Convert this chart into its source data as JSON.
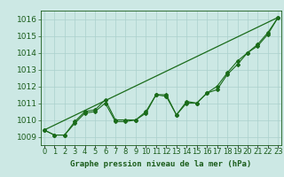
{
  "title": "Graphe pression niveau de la mer (hPa)",
  "ylim": [
    1008.5,
    1016.5
  ],
  "yticks": [
    1009,
    1010,
    1011,
    1012,
    1013,
    1014,
    1015,
    1016
  ],
  "xticks": [
    0,
    1,
    2,
    3,
    4,
    5,
    6,
    7,
    8,
    9,
    10,
    11,
    12,
    13,
    14,
    15,
    16,
    17,
    18,
    19,
    20,
    21,
    22,
    23
  ],
  "bg_color": "#cce8e4",
  "grid_color": "#aad0cc",
  "line_color": "#1a6b1a",
  "marker_color": "#1a6b1a",
  "line1": [
    1009.4,
    1009.1,
    1009.1,
    1009.9,
    1010.5,
    1010.6,
    1011.2,
    1010.0,
    1010.0,
    1010.0,
    1010.4,
    1011.5,
    1011.5,
    1010.3,
    1011.1,
    1011.0,
    1011.6,
    1012.0,
    1012.8,
    1013.5,
    1014.0,
    1014.5,
    1015.2,
    1016.1
  ],
  "line2": [
    1009.4,
    1009.1,
    1009.1,
    1009.8,
    1010.4,
    1010.5,
    1011.0,
    1009.9,
    1009.9,
    1010.0,
    1010.5,
    1011.5,
    1011.4,
    1010.3,
    1011.0,
    1011.0,
    1011.6,
    1011.8,
    1012.7,
    1013.3,
    1014.0,
    1014.4,
    1015.1,
    1016.1
  ],
  "line3_straight": [
    1009.4,
    1016.1
  ],
  "line3_x": [
    0,
    23
  ],
  "font_color": "#1a5c1a",
  "font_size": 6.5,
  "title_fontsize": 6.5,
  "figwidth": 3.2,
  "figheight": 2.0,
  "dpi": 100
}
